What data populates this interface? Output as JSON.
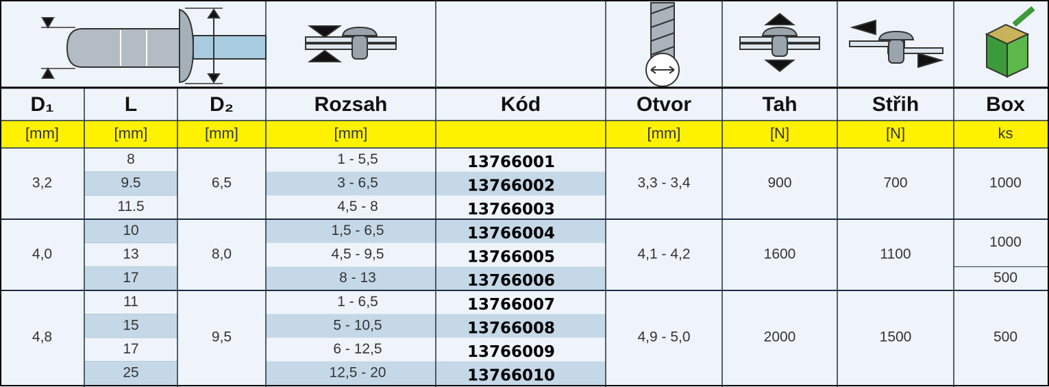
{
  "header": {
    "columns": [
      "D₁",
      "L",
      "D₂",
      "Rozsah",
      "Kód",
      "Otvor",
      "Tah",
      "Střih",
      "Box"
    ],
    "units": [
      "[mm]",
      "[mm]",
      "[mm]",
      "[mm]",
      "[mm]",
      "[N]",
      "[N]",
      "ks"
    ]
  },
  "groups": [
    {
      "d1": "3,2",
      "d2": "6,5",
      "otvor": "3,3 - 3,4",
      "tah": "900",
      "strih": "700",
      "box": [
        "1000"
      ],
      "rows": [
        {
          "l": "8",
          "rozsah": "1 - 5,5",
          "kod": "13766001"
        },
        {
          "l": "9.5",
          "rozsah": "3 - 6,5",
          "kod": "13766002"
        },
        {
          "l": "11.5",
          "rozsah": "4,5 - 8",
          "kod": "13766003"
        }
      ]
    },
    {
      "d1": "4,0",
      "d2": "8,0",
      "otvor": "4,1 - 4,2",
      "tah": "1600",
      "strih": "1100",
      "box": [
        "1000",
        "500"
      ],
      "rows": [
        {
          "l": "10",
          "rozsah": "1,5 - 6,5",
          "kod": "13766004"
        },
        {
          "l": "13",
          "rozsah": "4,5 - 9,5",
          "kod": "13766005"
        },
        {
          "l": "17",
          "rozsah": "8 - 13",
          "kod": "13766006"
        }
      ]
    },
    {
      "d1": "4,8",
      "d2": "9,5",
      "otvor": "4,9 - 5,0",
      "tah": "2000",
      "strih": "1500",
      "box": [
        "500"
      ],
      "rows": [
        {
          "l": "11",
          "rozsah": "1 - 6,5",
          "kod": "13766007"
        },
        {
          "l": "15",
          "rozsah": "5 - 10,5",
          "kod": "13766008"
        },
        {
          "l": "17",
          "rozsah": "6 - 12,5",
          "kod": "13766009"
        },
        {
          "l": "25",
          "rozsah": "12,5 - 20",
          "kod": "13766010"
        }
      ]
    }
  ]
}
